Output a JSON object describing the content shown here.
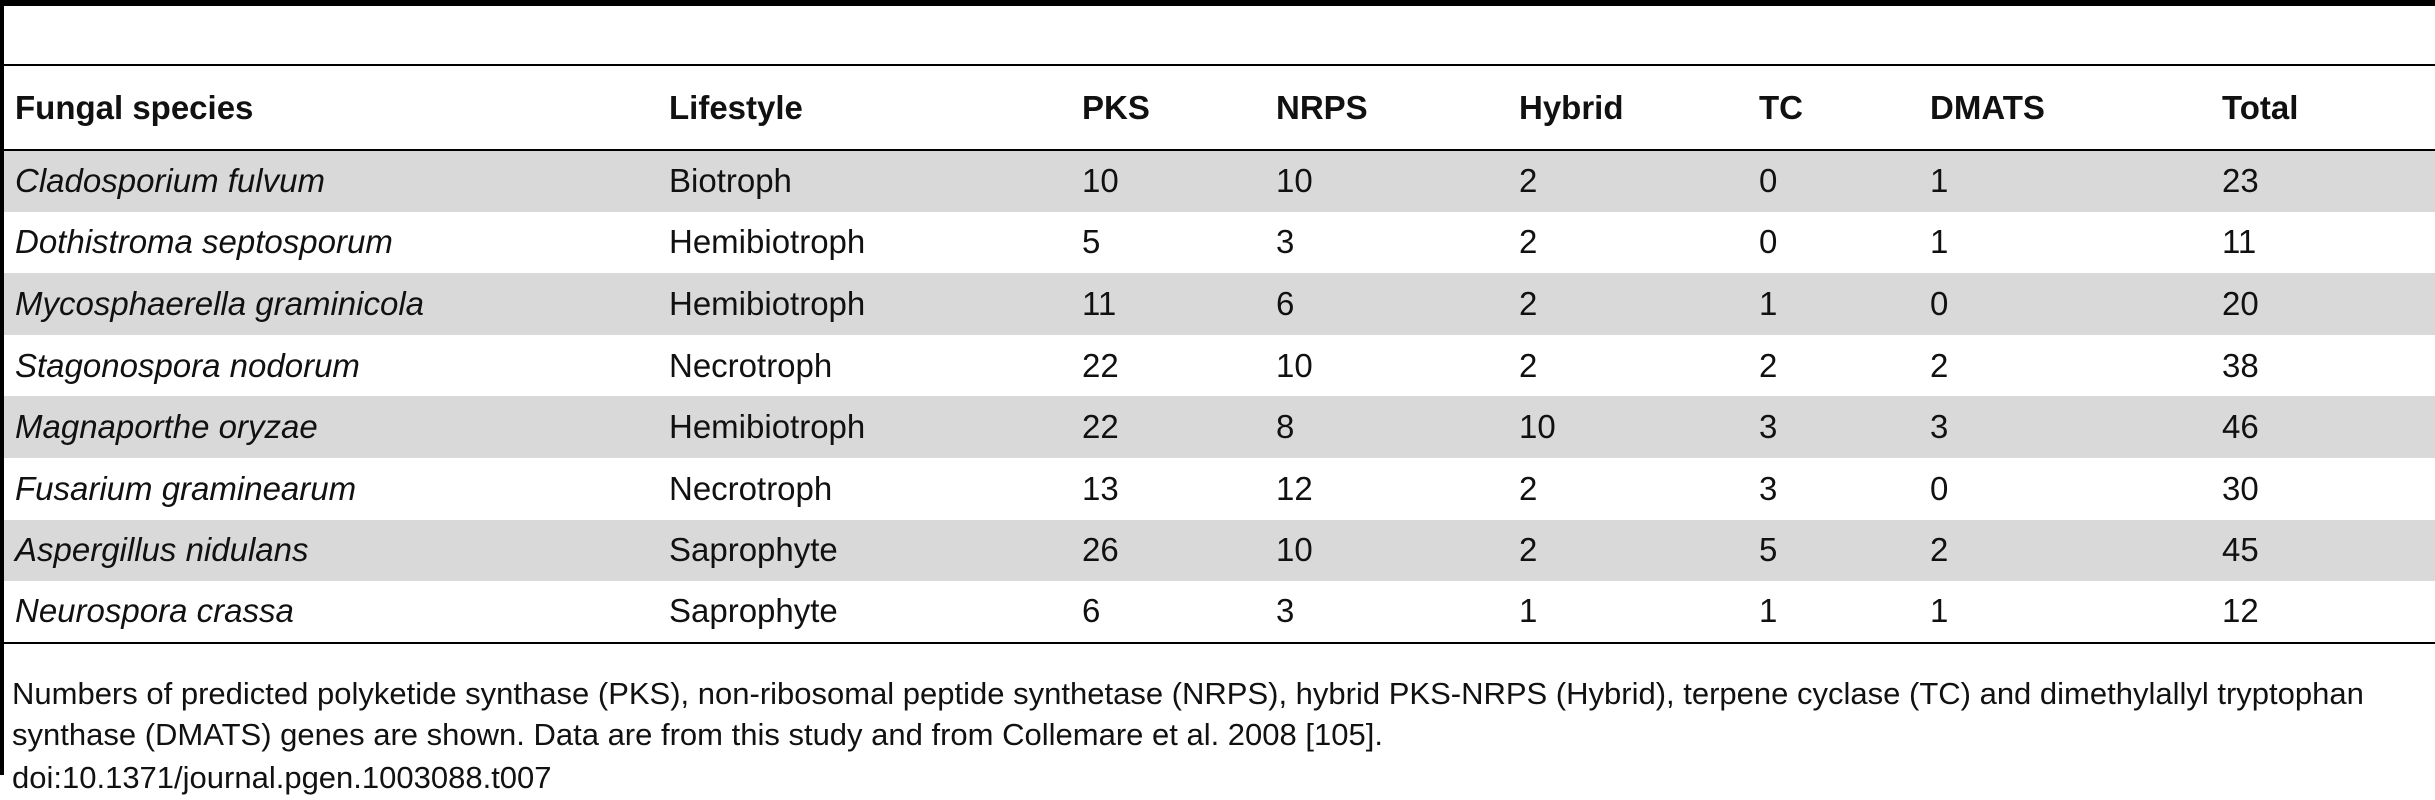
{
  "table": {
    "headers": [
      "Fungal species",
      "Lifestyle",
      "PKS",
      "NRPS",
      "Hybrid",
      "TC",
      "DMATS",
      "Total"
    ],
    "rows": [
      [
        "Cladosporium fulvum",
        "Biotroph",
        "10",
        "10",
        "2",
        "0",
        "1",
        "23"
      ],
      [
        "Dothistroma septosporum",
        "Hemibiotroph",
        "5",
        "3",
        "2",
        "0",
        "1",
        "11"
      ],
      [
        "Mycosphaerella graminicola",
        "Hemibiotroph",
        "11",
        "6",
        "2",
        "1",
        "0",
        "20"
      ],
      [
        "Stagonospora nodorum",
        "Necrotroph",
        "22",
        "10",
        "2",
        "2",
        "2",
        "38"
      ],
      [
        "Magnaporthe oryzae",
        "Hemibiotroph",
        "22",
        "8",
        "10",
        "3",
        "3",
        "46"
      ],
      [
        "Fusarium graminearum",
        "Necrotroph",
        "13",
        "12",
        "2",
        "3",
        "0",
        "30"
      ],
      [
        "Aspergillus nidulans",
        "Saprophyte",
        "26",
        "10",
        "2",
        "5",
        "2",
        "45"
      ],
      [
        "Neurospora crassa",
        "Saprophyte",
        "6",
        "3",
        "1",
        "1",
        "1",
        "12"
      ]
    ]
  },
  "caption": "Numbers of predicted polyketide synthase (PKS), non-ribosomal peptide synthetase (NRPS), hybrid PKS-NRPS (Hybrid), terpene cyclase (TC) and dimethylallyl tryptophan synthase (DMATS) genes are shown. Data are from this study and from Collemare et al. 2008 [105].",
  "doi": "doi:10.1371/journal.pgen.1003088.t007",
  "colors": {
    "row_shade": "#d9d9d9",
    "rule": "#000000",
    "text": "#111111"
  }
}
